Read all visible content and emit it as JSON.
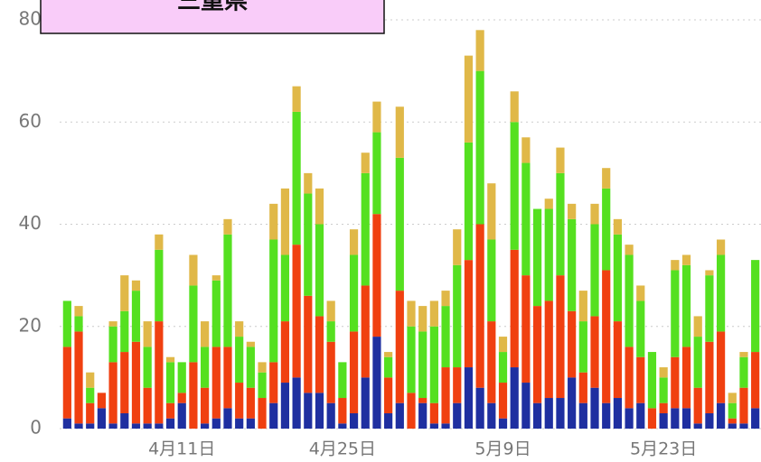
{
  "chart_data": {
    "type": "stacked_bar",
    "title": "三重県",
    "categories": [
      null,
      null,
      null,
      null,
      null,
      null,
      null,
      null,
      null,
      null,
      "4月11日",
      null,
      null,
      null,
      null,
      null,
      null,
      null,
      null,
      null,
      null,
      null,
      null,
      null,
      "4月25日",
      null,
      null,
      null,
      null,
      null,
      null,
      null,
      null,
      null,
      null,
      null,
      null,
      null,
      "5月9日",
      null,
      null,
      null,
      null,
      null,
      null,
      null,
      null,
      null,
      null,
      null,
      null,
      null,
      "5月23日",
      null,
      null,
      null,
      null,
      null,
      null,
      null,
      null
    ],
    "series": [
      {
        "color": "#1f2fa0",
        "values": [
          2,
          1,
          1,
          4,
          1,
          3,
          1,
          1,
          1,
          2,
          5,
          0,
          1,
          2,
          4,
          2,
          2,
          0,
          5,
          9,
          10,
          7,
          7,
          5,
          1,
          3,
          10,
          18,
          3,
          5,
          0,
          5,
          1,
          1,
          5,
          12,
          8,
          5,
          2,
          12,
          9,
          5,
          6,
          6,
          10,
          5,
          8,
          5,
          6,
          4,
          5,
          0,
          3,
          4,
          4,
          1,
          3,
          5,
          1,
          1,
          4
        ]
      },
      {
        "color": "#f04010",
        "values": [
          14,
          18,
          4,
          3,
          12,
          12,
          16,
          7,
          20,
          3,
          2,
          13,
          7,
          14,
          12,
          7,
          6,
          6,
          8,
          12,
          26,
          19,
          15,
          12,
          5,
          16,
          18,
          24,
          7,
          22,
          7,
          1,
          4,
          11,
          7,
          21,
          32,
          16,
          7,
          23,
          21,
          19,
          19,
          24,
          13,
          6,
          14,
          26,
          15,
          12,
          9,
          4,
          2,
          10,
          12,
          7,
          14,
          14,
          1,
          7,
          11
        ]
      },
      {
        "color": "#55e020",
        "values": [
          9,
          3,
          3,
          0,
          7,
          8,
          10,
          8,
          14,
          8,
          6,
          15,
          8,
          13,
          22,
          9,
          8,
          5,
          24,
          13,
          26,
          20,
          18,
          4,
          7,
          15,
          22,
          16,
          4,
          26,
          13,
          13,
          15,
          12,
          20,
          23,
          30,
          16,
          6,
          25,
          22,
          19,
          18,
          20,
          18,
          10,
          18,
          16,
          17,
          18,
          11,
          11,
          5,
          17,
          16,
          10,
          13,
          15,
          3,
          6,
          18
        ]
      },
      {
        "color": "#e0b848",
        "values": [
          0,
          2,
          3,
          0,
          1,
          7,
          2,
          5,
          3,
          1,
          0,
          6,
          5,
          1,
          3,
          3,
          1,
          2,
          7,
          13,
          5,
          4,
          7,
          4,
          0,
          5,
          4,
          6,
          1,
          10,
          5,
          5,
          5,
          3,
          7,
          17,
          8,
          11,
          3,
          6,
          5,
          0,
          2,
          5,
          3,
          6,
          4,
          4,
          3,
          2,
          3,
          0,
          2,
          2,
          2,
          4,
          1,
          3,
          2,
          1,
          0
        ]
      }
    ],
    "ylim": [
      0,
      80
    ],
    "yticks": [
      0,
      20,
      40,
      60,
      80
    ],
    "grid": true
  }
}
